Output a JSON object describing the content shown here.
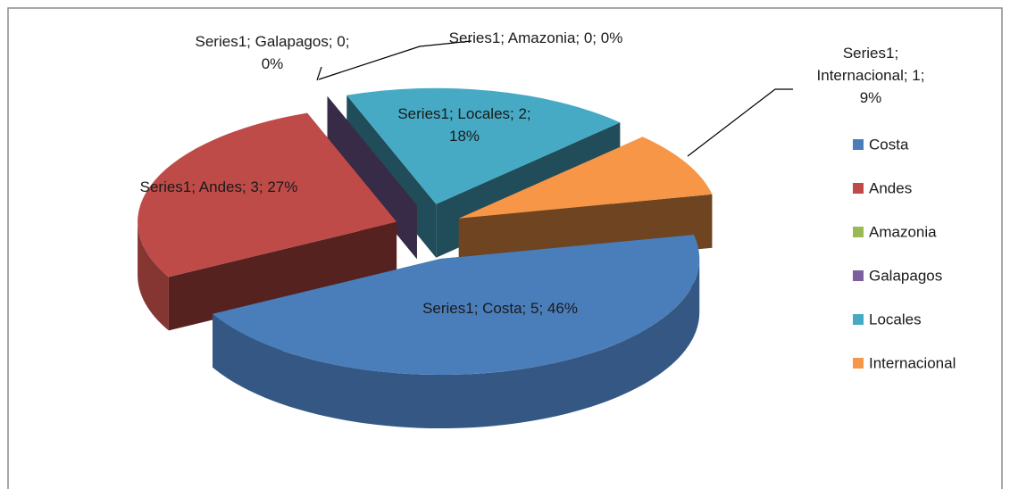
{
  "chart_data": {
    "type": "pie",
    "series_name": "Series1",
    "categories": [
      "Costa",
      "Andes",
      "Amazonia",
      "Galapagos",
      "Locales",
      "Internacional"
    ],
    "values": [
      5,
      3,
      0,
      0,
      2,
      1
    ],
    "value_labels": [
      "Series1; Costa; 5; 46%",
      "Series1; Andes; 3; 27%",
      "Series1; Amazonia; 0; 0%",
      "Series1; Galapagos; 0; 0%",
      "Series1; Locales; 2; 18%",
      "Series1; Internacional; 1; 9%"
    ],
    "colors": [
      "#4a7ebb",
      "#be4b48",
      "#98b954",
      "#7d5fa0",
      "#46aac5",
      "#f79646"
    ],
    "legend": "right",
    "exploded": true,
    "three_d": true
  }
}
